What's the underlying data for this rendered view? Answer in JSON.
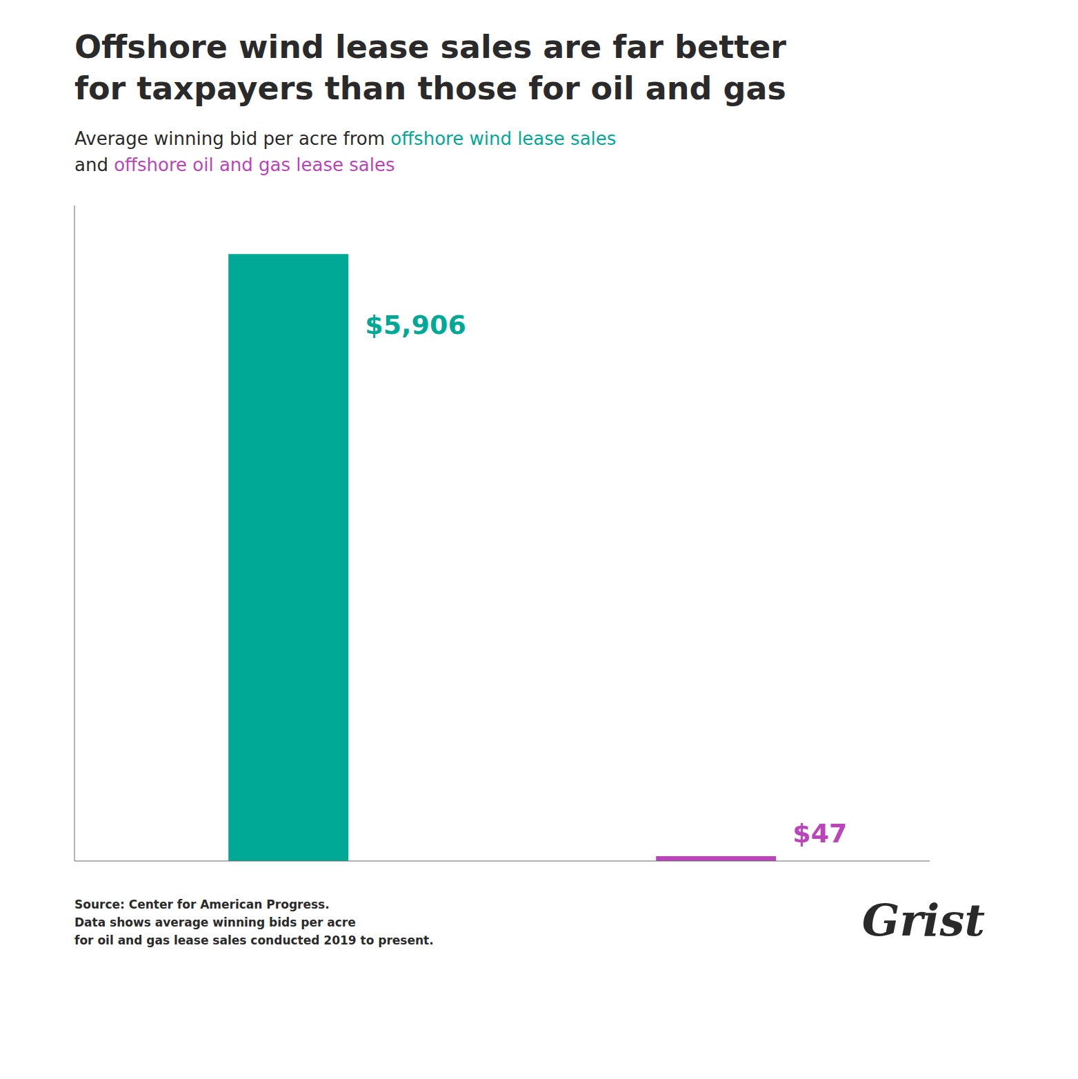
{
  "chart_data": {
    "type": "bar",
    "title": [
      "Offshore wind lease sales are far better",
      "for taxpayers than those for oil and gas"
    ],
    "subtitle": [
      [
        "Average winning bid per acre from ",
        "offshore wind lease sales"
      ],
      [
        "and ",
        "offshore oil and gas lease sales"
      ]
    ],
    "categories": [
      null,
      null
    ],
    "values": [
      5906,
      47
    ],
    "value_labels": [
      "$5,906",
      "$47"
    ],
    "data_labels": true,
    "colors": [
      "#00A896",
      "#BB44BB"
    ],
    "ylim": [
      0,
      6378.48
    ],
    "tick_labels": false,
    "grid": false,
    "annotations": [
      "Source: Center for American Progress.",
      "Data shows average winning bids per acre",
      "for oil and gas lease sales conducted 2019 to present.",
      "Grist"
    ]
  }
}
